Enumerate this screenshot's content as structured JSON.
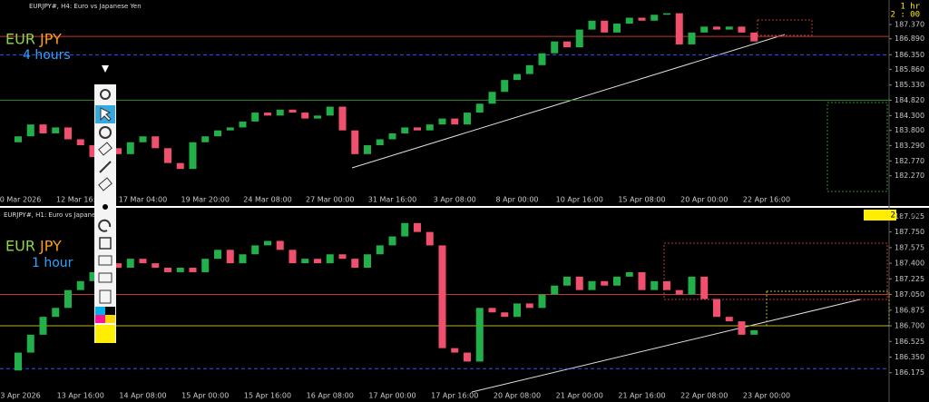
{
  "chart_data": [
    {
      "type": "candlestick",
      "title": "EURJPY#, H4: Euro vs Japanese Yen",
      "symbol_base": "EUR",
      "symbol_quote": "JPY",
      "timeframe_label": "4 hours",
      "timer_labels": [
        "1 hr",
        "2 : 00"
      ],
      "categories": [
        "10 Mar 2026",
        null,
        null,
        null,
        null,
        "12 Mar 16:00",
        null,
        null,
        null,
        null,
        "17 Mar 04:00",
        null,
        null,
        null,
        null,
        "19 Mar 20:00",
        null,
        null,
        null,
        null,
        "24 Mar 08:00",
        null,
        null,
        null,
        null,
        "27 Mar 00:00",
        null,
        null,
        null,
        null,
        "31 Mar 16:00",
        null,
        null,
        null,
        null,
        "3 Apr 08:00",
        null,
        null,
        null,
        null,
        "8 Apr 00:00",
        null,
        null,
        null,
        null,
        "10 Apr 16:00",
        null,
        null,
        null,
        null,
        "15 Apr 08:00",
        null,
        null,
        null,
        null,
        "20 Apr 00:00",
        null,
        null,
        null,
        null,
        "22 Apr 16:00"
      ],
      "open": [
        183.4,
        183.6,
        184.0,
        183.7,
        183.9,
        183.5,
        183.3,
        182.9,
        183.2,
        183.0,
        183.4,
        183.6,
        183.2,
        182.7,
        182.5,
        183.4,
        183.6,
        183.8,
        183.9,
        184.1,
        184.4,
        184.3,
        184.5,
        184.4,
        184.2,
        184.3,
        184.6,
        183.8,
        183.0,
        183.3,
        183.5,
        183.7,
        183.9,
        183.8,
        184.0,
        184.2,
        184.0,
        184.4,
        184.7,
        185.1,
        185.5,
        185.7,
        186.0,
        186.4,
        186.8,
        186.6,
        187.2,
        187.5,
        187.1,
        187.4,
        187.6,
        187.5,
        187.7,
        187.75,
        186.7,
        187.1,
        187.3,
        187.2,
        187.3,
        187.1,
        null
      ],
      "close": [
        183.6,
        184.0,
        183.7,
        183.9,
        183.5,
        183.3,
        182.9,
        183.2,
        183.0,
        183.4,
        183.6,
        183.2,
        182.7,
        182.5,
        183.4,
        183.6,
        183.8,
        183.9,
        184.1,
        184.4,
        184.3,
        184.5,
        184.4,
        184.2,
        184.3,
        184.6,
        183.8,
        183.0,
        183.3,
        183.5,
        183.7,
        183.9,
        183.8,
        184.0,
        184.2,
        184.0,
        184.4,
        184.7,
        185.1,
        185.5,
        185.7,
        186.0,
        186.4,
        186.8,
        186.6,
        187.2,
        187.5,
        187.1,
        187.4,
        187.6,
        187.5,
        187.7,
        187.75,
        186.7,
        187.1,
        187.3,
        187.2,
        187.3,
        187.1,
        186.8,
        null
      ],
      "up_color": "#22b04a",
      "down_color": "#f0506e",
      "ylim": [
        181.71,
        187.83
      ],
      "yticks": [
        {
          "value": 187.37,
          "label": "187.370"
        },
        {
          "value": 186.89,
          "label": "186.890"
        },
        {
          "value": 186.35,
          "label": "186.350"
        },
        {
          "value": 185.86,
          "label": "185.860"
        },
        {
          "value": 185.33,
          "label": "185.330"
        },
        {
          "value": 184.82,
          "label": "184.820"
        },
        {
          "value": 184.3,
          "label": "184.300"
        },
        {
          "value": 183.8,
          "label": "183.800"
        },
        {
          "value": 183.29,
          "label": "183.290"
        },
        {
          "value": 182.77,
          "label": "182.770"
        },
        {
          "value": 182.27,
          "label": "182.270"
        }
      ],
      "levels": [
        {
          "value": 186.97,
          "color": "#c0392b",
          "style": "solid"
        },
        {
          "value": 186.35,
          "color": "#3050ff",
          "style": "dashed"
        },
        {
          "value": 184.82,
          "color": "#2e8b2e",
          "style": "solid"
        }
      ]
    },
    {
      "type": "candlestick",
      "title": "EURJPY#, H1: Euro vs Japanese Yen",
      "symbol_base": "EUR",
      "symbol_quote": "JPY",
      "timeframe_label": "1 hour",
      "timer_labels": [
        "2 : 00"
      ],
      "categories": [
        "13 Apr 2026",
        null,
        null,
        null,
        null,
        "13 Apr 16:00",
        null,
        null,
        null,
        null,
        "14 Apr 08:00",
        null,
        null,
        null,
        null,
        "15 Apr 00:00",
        null,
        null,
        null,
        null,
        "15 Apr 16:00",
        null,
        null,
        null,
        null,
        "16 Apr 08:00",
        null,
        null,
        null,
        null,
        "17 Apr 00:00",
        null,
        null,
        null,
        null,
        "17 Apr 16:00",
        null,
        null,
        null,
        null,
        "20 Apr 08:00",
        null,
        null,
        null,
        null,
        "21 Apr 00:00",
        null,
        null,
        null,
        null,
        "21 Apr 16:00",
        null,
        null,
        null,
        null,
        "22 Apr 08:00",
        null,
        null,
        null,
        null,
        "23 Apr 00:00"
      ],
      "open": [
        186.2,
        186.4,
        186.6,
        186.8,
        186.9,
        187.1,
        187.2,
        187.3,
        187.4,
        187.35,
        187.45,
        187.4,
        187.35,
        187.3,
        187.35,
        187.3,
        187.45,
        187.55,
        187.4,
        187.5,
        187.6,
        187.65,
        187.55,
        187.4,
        187.45,
        187.4,
        187.5,
        187.45,
        187.35,
        187.5,
        187.6,
        187.7,
        187.85,
        187.75,
        187.6,
        186.45,
        186.4,
        186.3,
        186.9,
        186.85,
        186.8,
        186.95,
        186.9,
        187.05,
        187.15,
        187.25,
        187.1,
        187.2,
        187.15,
        187.25,
        187.3,
        187.1,
        187.2,
        187.1,
        187.05,
        187.25,
        187.0,
        186.8,
        186.75,
        186.6,
        null
      ],
      "close": [
        186.4,
        186.6,
        186.8,
        186.9,
        187.1,
        187.2,
        187.3,
        187.4,
        187.35,
        187.45,
        187.4,
        187.35,
        187.3,
        187.35,
        187.3,
        187.45,
        187.55,
        187.4,
        187.5,
        187.6,
        187.65,
        187.55,
        187.4,
        187.45,
        187.4,
        187.5,
        187.45,
        187.35,
        187.5,
        187.6,
        187.7,
        187.85,
        187.75,
        187.6,
        186.45,
        186.4,
        186.3,
        186.9,
        186.85,
        186.8,
        186.95,
        186.9,
        187.05,
        187.15,
        187.25,
        187.1,
        187.2,
        187.15,
        187.25,
        187.3,
        187.1,
        187.2,
        187.1,
        187.05,
        187.25,
        187.0,
        186.8,
        186.75,
        186.6,
        186.65,
        null
      ],
      "up_color": "#22b04a",
      "down_color": "#f0506e",
      "ylim": [
        186.03,
        187.99
      ],
      "yticks": [
        {
          "value": 187.925,
          "label": "187.925"
        },
        {
          "value": 187.75,
          "label": "187.750"
        },
        {
          "value": 187.575,
          "label": "187.575"
        },
        {
          "value": 187.4,
          "label": "187.400"
        },
        {
          "value": 187.225,
          "label": "187.225"
        },
        {
          "value": 187.05,
          "label": "187.050"
        },
        {
          "value": 186.875,
          "label": "186.875"
        },
        {
          "value": 186.7,
          "label": "186.700"
        },
        {
          "value": 186.525,
          "label": "186.525"
        },
        {
          "value": 186.35,
          "label": "186.350"
        },
        {
          "value": 186.175,
          "label": "186.175"
        }
      ],
      "levels": [
        {
          "value": 187.05,
          "color": "#c0392b",
          "style": "solid"
        },
        {
          "value": 186.7,
          "color": "#b8b820",
          "style": "solid"
        },
        {
          "value": 186.22,
          "color": "#3050ff",
          "style": "dashed"
        }
      ]
    }
  ]
}
